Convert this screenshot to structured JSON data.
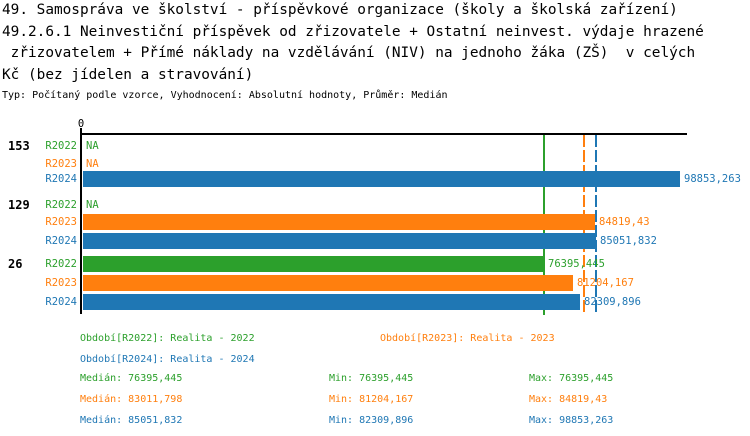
{
  "title_lines": [
    "49. Samospráva ve školství - příspěvkové organizace (školy a školská zařízení)",
    "49.2.6.1 Neinvestiční příspěvek od zřizovatele + Ostatní neinvest. výdaje hrazené",
    " zřizovatelem + Přímé náklady na vzdělávání (NIV) na jednoho žáka (ZŠ)  v celých",
    "Kč (bez jídelen a stravování)"
  ],
  "subtitle": "Typ: Počítaný podle vzorce, Vyhodnocení: Absolutní hodnoty, Průměr: Medián",
  "axis": {
    "zero_label": "0"
  },
  "colors": {
    "R2022": "#2ca02c",
    "R2023": "#ff7f0e",
    "R2024": "#1f77b4",
    "axis": "#000000",
    "background": "#ffffff"
  },
  "chart_data": {
    "type": "bar",
    "orientation": "horizontal",
    "unit": "Kč",
    "xmin": 0,
    "series_order": [
      "R2022",
      "R2023",
      "R2024"
    ],
    "groups": [
      {
        "label": "153",
        "bars": [
          {
            "series": "R2022",
            "value": null,
            "value_label": "NA"
          },
          {
            "series": "R2023",
            "value": null,
            "value_label": "NA"
          },
          {
            "series": "R2024",
            "value": 98853.263,
            "value_label": "98853,263"
          }
        ]
      },
      {
        "label": "129",
        "bars": [
          {
            "series": "R2022",
            "value": null,
            "value_label": "NA"
          },
          {
            "series": "R2023",
            "value": 84819.43,
            "value_label": "84819,43"
          },
          {
            "series": "R2024",
            "value": 85051.832,
            "value_label": "85051,832"
          }
        ]
      },
      {
        "label": "26",
        "bars": [
          {
            "series": "R2022",
            "value": 76395.445,
            "value_label": "76395,445"
          },
          {
            "series": "R2023",
            "value": 81204.167,
            "value_label": "81204,167"
          },
          {
            "series": "R2024",
            "value": 82309.896,
            "value_label": "82309,896"
          }
        ]
      }
    ],
    "median_lines": [
      {
        "series": "R2022",
        "value": 76395.445
      },
      {
        "series": "R2023",
        "value": 83011.798
      },
      {
        "series": "R2024",
        "value": 85051.832
      }
    ]
  },
  "legend": [
    {
      "series": "R2022",
      "text": "Období[R2022]: Realita - 2022"
    },
    {
      "series": "R2023",
      "text": "Období[R2023]: Realita - 2023"
    },
    {
      "series": "R2024",
      "text": "Období[R2024]: Realita - 2024"
    }
  ],
  "stat_labels": {
    "median": "Medián:",
    "min": "Min:",
    "max": "Max:"
  },
  "stats": [
    {
      "series": "R2022",
      "median": "76395,445",
      "min": "76395,445",
      "max": "76395,445"
    },
    {
      "series": "R2023",
      "median": "83011,798",
      "min": "81204,167",
      "max": "84819,43"
    },
    {
      "series": "R2024",
      "median": "85051,832",
      "min": "82309,896",
      "max": "98853,263"
    }
  ]
}
